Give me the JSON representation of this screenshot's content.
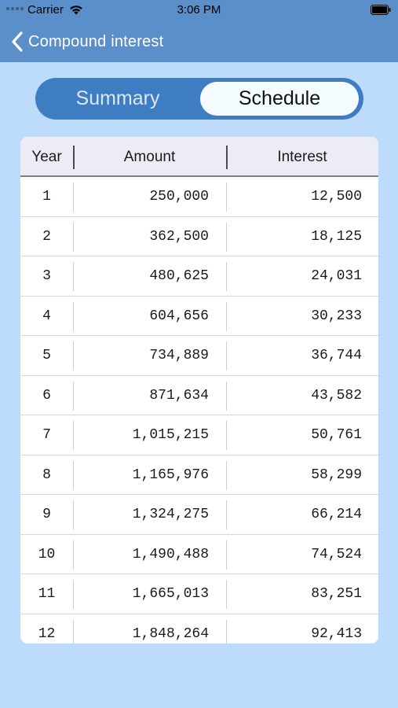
{
  "status_bar": {
    "carrier": "Carrier",
    "time": "3:06 PM",
    "icons": [
      "signal-dots-icon",
      "wifi-icon",
      "battery-icon"
    ]
  },
  "nav": {
    "back_title": "Compound interest",
    "back_icon": "chevron-left-icon"
  },
  "segmented": {
    "options": [
      "Summary",
      "Schedule"
    ],
    "selected": "Schedule"
  },
  "colors": {
    "background": "#bddcfb",
    "nav_bar": "#5a8fc9",
    "segment_track": "#3f7dc2",
    "segment_selected": "#f4fbff"
  },
  "table": {
    "headers": [
      "Year",
      "Amount",
      "Interest"
    ],
    "rows": [
      {
        "year": "1",
        "amount": "250,000",
        "interest": "12,500"
      },
      {
        "year": "2",
        "amount": "362,500",
        "interest": "18,125"
      },
      {
        "year": "3",
        "amount": "480,625",
        "interest": "24,031"
      },
      {
        "year": "4",
        "amount": "604,656",
        "interest": "30,233"
      },
      {
        "year": "5",
        "amount": "734,889",
        "interest": "36,744"
      },
      {
        "year": "6",
        "amount": "871,634",
        "interest": "43,582"
      },
      {
        "year": "7",
        "amount": "1,015,215",
        "interest": "50,761"
      },
      {
        "year": "8",
        "amount": "1,165,976",
        "interest": "58,299"
      },
      {
        "year": "9",
        "amount": "1,324,275",
        "interest": "66,214"
      },
      {
        "year": "10",
        "amount": "1,490,488",
        "interest": "74,524"
      },
      {
        "year": "11",
        "amount": "1,665,013",
        "interest": "83,251"
      },
      {
        "year": "12",
        "amount": "1,848,264",
        "interest": "92,413"
      }
    ]
  }
}
